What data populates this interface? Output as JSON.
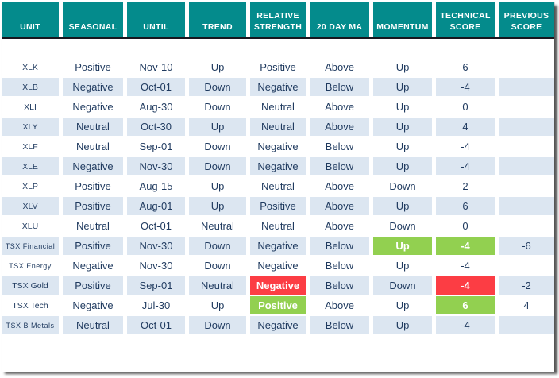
{
  "table": {
    "columns": [
      "UNIT",
      "SEASONAL",
      "UNTIL",
      "TREND",
      "RELATIVE STRENGTH",
      "20 DAY MA",
      "MOMENTUM",
      "TECHNICAL SCORE",
      "PREVIOUS SCORE"
    ],
    "rows": [
      {
        "unit": "XLK",
        "seasonal": "Positive",
        "until": "Nov-10",
        "trend": "Up",
        "relative_strength": "Positive",
        "ma20": "Above",
        "momentum": "Up",
        "technical_score": "6",
        "previous_score": ""
      },
      {
        "unit": "XLB",
        "seasonal": "Negative",
        "until": "Oct-01",
        "trend": "Down",
        "relative_strength": "Negative",
        "ma20": "Below",
        "momentum": "Up",
        "technical_score": "-4",
        "previous_score": ""
      },
      {
        "unit": "XLI",
        "seasonal": "Negative",
        "until": "Aug-30",
        "trend": "Down",
        "relative_strength": "Neutral",
        "ma20": "Above",
        "momentum": "Up",
        "technical_score": "0",
        "previous_score": ""
      },
      {
        "unit": "XLY",
        "seasonal": "Neutral",
        "until": "Oct-30",
        "trend": "Up",
        "relative_strength": "Neutral",
        "ma20": "Above",
        "momentum": "Up",
        "technical_score": "4",
        "previous_score": ""
      },
      {
        "unit": "XLF",
        "seasonal": "Neutral",
        "until": "Sep-01",
        "trend": "Down",
        "relative_strength": "Negative",
        "ma20": "Below",
        "momentum": "Up",
        "technical_score": "-4",
        "previous_score": ""
      },
      {
        "unit": "XLE",
        "seasonal": "Negative",
        "until": "Nov-30",
        "trend": "Down",
        "relative_strength": "Negative",
        "ma20": "Below",
        "momentum": "Up",
        "technical_score": "-4",
        "previous_score": ""
      },
      {
        "unit": "XLP",
        "seasonal": "Positive",
        "until": "Aug-15",
        "trend": "Up",
        "relative_strength": "Neutral",
        "ma20": "Above",
        "momentum": "Down",
        "technical_score": "2",
        "previous_score": ""
      },
      {
        "unit": "XLV",
        "seasonal": "Positive",
        "until": "Aug-01",
        "trend": "Up",
        "relative_strength": "Positive",
        "ma20": "Above",
        "momentum": "Up",
        "technical_score": "6",
        "previous_score": ""
      },
      {
        "unit": "XLU",
        "seasonal": "Neutral",
        "until": "Oct-01",
        "trend": "Neutral",
        "relative_strength": "Neutral",
        "ma20": "Above",
        "momentum": "Down",
        "technical_score": "0",
        "previous_score": ""
      },
      {
        "unit": "TSX Financial",
        "seasonal": "Positive",
        "until": "Nov-30",
        "trend": "Down",
        "relative_strength": "Negative",
        "ma20": "Below",
        "momentum": "Up",
        "technical_score": "-4",
        "previous_score": "-6",
        "highlights": {
          "momentum": "green",
          "technical_score": "green"
        }
      },
      {
        "unit": "TSX Energy",
        "seasonal": "Negative",
        "until": "Nov-30",
        "trend": "Down",
        "relative_strength": "Negative",
        "ma20": "Below",
        "momentum": "Up",
        "technical_score": "-4",
        "previous_score": ""
      },
      {
        "unit": "TSX Gold",
        "seasonal": "Positive",
        "until": "Sep-01",
        "trend": "Neutral",
        "relative_strength": "Negative",
        "ma20": "Below",
        "momentum": "Down",
        "technical_score": "-4",
        "previous_score": "-2",
        "highlights": {
          "relative_strength": "red",
          "technical_score": "red"
        }
      },
      {
        "unit": "TSX Tech",
        "seasonal": "Negative",
        "until": "Jul-30",
        "trend": "Up",
        "relative_strength": "Positive",
        "ma20": "Above",
        "momentum": "Up",
        "technical_score": "6",
        "previous_score": "4",
        "highlights": {
          "relative_strength": "green",
          "technical_score": "green"
        }
      },
      {
        "unit": "TSX B Metals",
        "seasonal": "Neutral",
        "until": "Oct-01",
        "trend": "Down",
        "relative_strength": "Negative",
        "ma20": "Below",
        "momentum": "Up",
        "technical_score": "-4",
        "previous_score": ""
      },
      {
        "unit": "",
        "seasonal": "",
        "until": "",
        "trend": "",
        "relative_strength": "",
        "ma20": "",
        "momentum": "",
        "technical_score": "",
        "previous_score": ""
      }
    ]
  },
  "colors": {
    "header_bg": "#048b8c",
    "header_text": "#ffffff",
    "header_underline": "#17171f",
    "alt_row_bg": "#dce6f1",
    "positive_bg": "#92d050",
    "negative_bg": "#fc3d44",
    "text": "#1f3a5f"
  }
}
